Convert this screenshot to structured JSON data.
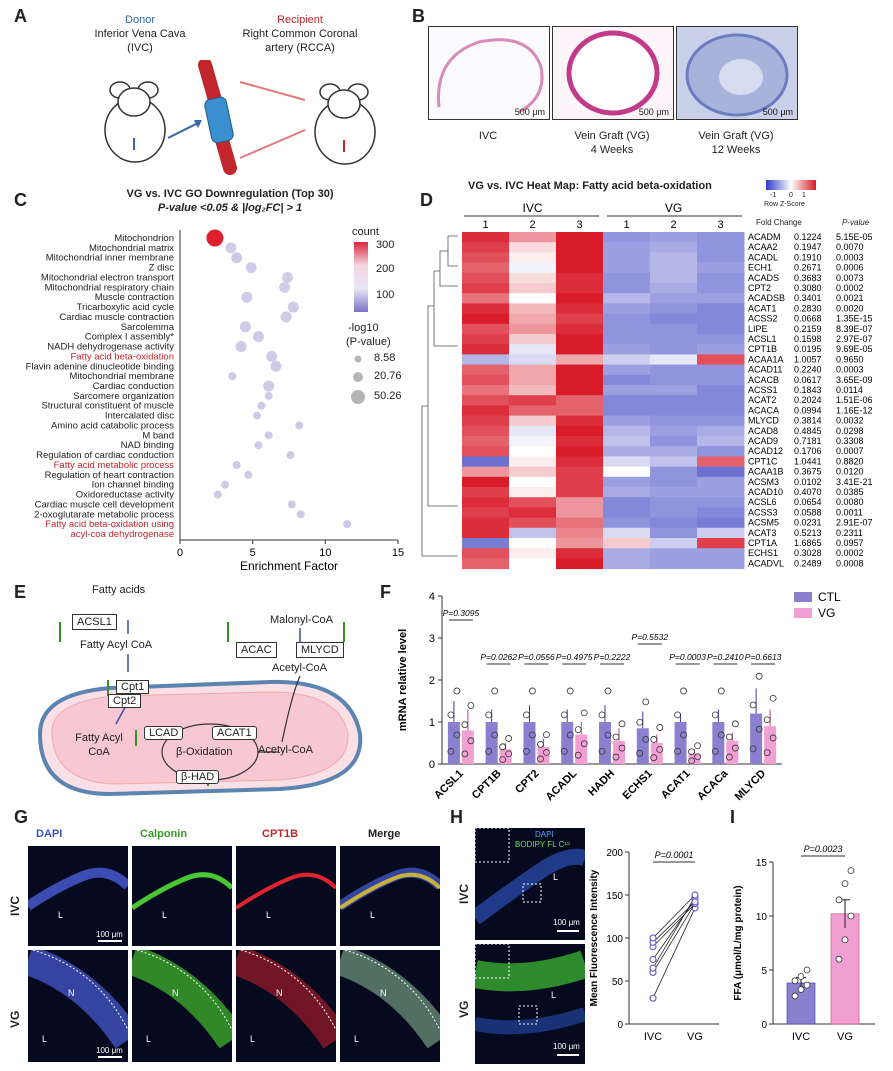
{
  "panel_labels": [
    "A",
    "B",
    "C",
    "D",
    "E",
    "F",
    "G",
    "H",
    "I"
  ],
  "panel_a": {
    "donor_title": "Donor",
    "donor_desc": "Inferior Vena Cava",
    "donor_abbr": "(IVC)",
    "recipient_title": "Recipient",
    "recipient_desc": "Right Common Coronal",
    "recipient_desc2": "artery (RCCA)"
  },
  "panel_b": {
    "images": [
      {
        "label": "IVC",
        "label2": "",
        "scale": "500 μm"
      },
      {
        "label": "Vein Graft (VG)",
        "label2": "4 Weeks",
        "scale": "500 μm"
      },
      {
        "label": "Vein Graft (VG)",
        "label2": "12 Weeks",
        "scale": "500 μm"
      }
    ]
  },
  "panel_c": {
    "title": "VG vs. IVC GO Downregulation (Top 30)",
    "subtitle": "P-value <0.05 & |log₂FC| > 1",
    "legend_count_title": "count",
    "legend_count_ticks": [
      "300",
      "200",
      "100"
    ],
    "legend_size_title": "-log10",
    "legend_size_title2": "(P-value)",
    "legend_size_values": [
      "8.58",
      "20.76",
      "50.26"
    ]
  },
  "panel_d": {
    "title": "VG vs. IVC Heat Map: Fatty acid beta-oxidation",
    "scale_ticks": [
      "-1",
      "0",
      "1"
    ],
    "scale_label": "Row Z-Score",
    "group_ivc": "IVC",
    "group_vg": "VG",
    "col_numbers": [
      "1",
      "2",
      "3",
      "1",
      "2",
      "3"
    ],
    "hdr_fc": "Fold Change",
    "hdr_p": "P-value",
    "genes": [
      {
        "name": "ACADM",
        "fc": "0.1224",
        "p": "5.15E-05",
        "z": [
          1.2,
          0.6,
          1.4,
          -0.9,
          -0.8,
          -0.9
        ]
      },
      {
        "name": "ACAA2",
        "fc": "0.1947",
        "p": "0.0070",
        "z": [
          1.1,
          0.2,
          1.3,
          -0.8,
          -0.7,
          -0.9
        ]
      },
      {
        "name": "ACADL",
        "fc": "0.1910",
        "p": "0.0003",
        "z": [
          1.0,
          0.1,
          1.3,
          -0.8,
          -0.6,
          -0.9
        ]
      },
      {
        "name": "ECH1",
        "fc": "0.2671",
        "p": "0.0006",
        "z": [
          0.9,
          -0.1,
          1.4,
          -0.8,
          -0.6,
          -0.8
        ]
      },
      {
        "name": "ACADS",
        "fc": "0.3683",
        "p": "0.0073",
        "z": [
          1.0,
          0.2,
          1.2,
          -0.9,
          -0.6,
          -0.9
        ]
      },
      {
        "name": "CPT2",
        "fc": "0.3080",
        "p": "0.0002",
        "z": [
          1.1,
          0.3,
          1.2,
          -0.9,
          -0.7,
          -0.9
        ]
      },
      {
        "name": "ACADSB",
        "fc": "0.3401",
        "p": "0.0021",
        "z": [
          0.8,
          0.0,
          1.4,
          -0.6,
          -0.8,
          -0.8
        ]
      },
      {
        "name": "ACAT1",
        "fc": "0.2830",
        "p": "0.0020",
        "z": [
          1.2,
          0.4,
          1.2,
          -0.8,
          -0.9,
          -1.0
        ]
      },
      {
        "name": "ACSS2",
        "fc": "0.0668",
        "p": "1.35E-15",
        "z": [
          1.3,
          0.5,
          1.1,
          -0.9,
          -1.0,
          -1.0
        ]
      },
      {
        "name": "LIPE",
        "fc": "0.2159",
        "p": "8.39E-07",
        "z": [
          1.0,
          0.6,
          1.2,
          -0.9,
          -0.9,
          -1.0
        ]
      },
      {
        "name": "ACSL1",
        "fc": "0.1598",
        "p": "2.97E-07",
        "z": [
          1.1,
          0.3,
          1.3,
          -0.9,
          -0.9,
          -0.9
        ]
      },
      {
        "name": "CPT1B",
        "fc": "0.0195",
        "p": "9.69E-05",
        "z": [
          1.2,
          -0.2,
          1.4,
          -0.8,
          -0.9,
          -0.8
        ]
      },
      {
        "name": "ACAA1A",
        "fc": "1.0057",
        "p": "0.9650",
        "z": [
          -0.6,
          -0.3,
          0.5,
          -0.4,
          -0.2,
          1.0
        ]
      },
      {
        "name": "ACAD11",
        "fc": "0.2240",
        "p": "0.0003",
        "z": [
          0.9,
          0.5,
          1.3,
          -0.8,
          -0.9,
          -0.9
        ]
      },
      {
        "name": "ACACB",
        "fc": "0.0617",
        "p": "3.65E-09",
        "z": [
          1.0,
          0.5,
          1.3,
          -1.0,
          -0.9,
          -0.9
        ]
      },
      {
        "name": "ACSS1",
        "fc": "0.1843",
        "p": "0.0114",
        "z": [
          0.8,
          0.4,
          1.4,
          -0.8,
          -0.8,
          -1.0
        ]
      },
      {
        "name": "ACAT2",
        "fc": "0.2024",
        "p": "1.51E-06",
        "z": [
          1.0,
          1.1,
          0.9,
          -1.0,
          -1.0,
          -1.0
        ]
      },
      {
        "name": "ACACA",
        "fc": "0.0994",
        "p": "1.16E-12",
        "z": [
          1.2,
          0.9,
          0.9,
          -1.0,
          -1.0,
          -1.0
        ]
      },
      {
        "name": "MLYCD",
        "fc": "0.3814",
        "p": "0.0032",
        "z": [
          1.1,
          0.3,
          1.2,
          -0.8,
          -0.9,
          -0.9
        ]
      },
      {
        "name": "ACAD8",
        "fc": "0.4845",
        "p": "0.0298",
        "z": [
          1.0,
          -0.2,
          1.3,
          -0.6,
          -0.8,
          -0.7
        ]
      },
      {
        "name": "ACAD9",
        "fc": "0.7181",
        "p": "0.3308",
        "z": [
          0.9,
          -0.1,
          1.2,
          -0.5,
          -0.9,
          -0.6
        ]
      },
      {
        "name": "ACAD12",
        "fc": "0.1706",
        "p": "0.0007",
        "z": [
          1.0,
          0.0,
          1.3,
          -0.7,
          -0.7,
          -0.9
        ]
      },
      {
        "name": "CPT1C",
        "fc": "1.0441",
        "p": "0.8820",
        "z": [
          -1.2,
          0.1,
          1.2,
          -0.3,
          -0.5,
          0.9
        ]
      },
      {
        "name": "ACAA1B",
        "fc": "0.3675",
        "p": "0.0120",
        "z": [
          0.6,
          0.3,
          1.1,
          0.0,
          -0.9,
          -1.2
        ]
      },
      {
        "name": "ACSM3",
        "fc": "0.0102",
        "p": "3.41E-21",
        "z": [
          1.3,
          0.0,
          1.1,
          -0.8,
          -0.9,
          -0.8
        ]
      },
      {
        "name": "ACAD10",
        "fc": "0.4070",
        "p": "0.0385",
        "z": [
          1.1,
          0.1,
          1.1,
          -0.7,
          -0.8,
          -0.8
        ]
      },
      {
        "name": "ACSL6",
        "fc": "0.0654",
        "p": "0.0080",
        "z": [
          1.2,
          1.0,
          0.6,
          -1.0,
          -0.9,
          -0.9
        ]
      },
      {
        "name": "ACSS3",
        "fc": "0.0588",
        "p": "0.0011",
        "z": [
          1.1,
          1.2,
          0.6,
          -1.0,
          -0.9,
          -1.0
        ]
      },
      {
        "name": "ACSM5",
        "fc": "0.0231",
        "p": "2.91E-07",
        "z": [
          1.2,
          1.0,
          0.8,
          -0.9,
          -1.0,
          -1.1
        ]
      },
      {
        "name": "ACAT3",
        "fc": "0.5213",
        "p": "0.2311",
        "z": [
          1.2,
          -0.5,
          0.7,
          -0.3,
          -0.9,
          -0.4
        ]
      },
      {
        "name": "CPT1A",
        "fc": "1.6865",
        "p": "0.0957",
        "z": [
          -1.1,
          0.0,
          0.6,
          0.3,
          -0.4,
          1.1
        ]
      },
      {
        "name": "ECHS1",
        "fc": "0.3028",
        "p": "0.0002",
        "z": [
          1.0,
          0.1,
          1.2,
          -0.7,
          -0.8,
          -0.8
        ]
      },
      {
        "name": "ACADVL",
        "fc": "0.2489",
        "p": "0.0008",
        "z": [
          0.9,
          0.0,
          1.3,
          -0.7,
          -0.8,
          -0.8
        ]
      }
    ]
  },
  "panel_e": {
    "fatty_acids": "Fatty acids",
    "acsl1": "ACSL1",
    "fatty_acyl_coa": "Fatty Acyl CoA",
    "cpt1": "Cpt1",
    "cpt2": "Cpt2",
    "fatty_acyl_coa_inner": "Fatty Acyl",
    "fatty_acyl_coa_inner2": "CoA",
    "lcad": "LCAD",
    "acat1": "ACAT1",
    "beta_ox": "β-Oxidation",
    "beta_had": "β-HAD",
    "acetyl_coa_inner": "Acetyl-CoA",
    "malonyl": "Malonyl-CoA",
    "acac": "ACAC",
    "mlycd": "MLYCD",
    "acetyl_coa": "Acetyl-CoA"
  },
  "panel_g": {
    "col_labels": [
      "DAPI",
      "Calponin",
      "CPT1B",
      "Merge"
    ],
    "row_labels": [
      "IVC",
      "VG"
    ],
    "scale": "100 μm",
    "region_l": "L",
    "region_n": "N"
  },
  "panel_h": {
    "legend_dapi": "DAPI",
    "legend_bodipy": "BODIPY FL C¹⁶",
    "row_labels": [
      "IVC",
      "VG"
    ],
    "scale": "100 μm",
    "region_l": "L"
  },
  "chart_data": [
    {
      "type": "scatter",
      "panel": "C",
      "xlabel": "Enrichment Factor",
      "xlim": [
        0,
        15
      ],
      "x_ticks": [
        "0",
        "5",
        "10",
        "15"
      ],
      "categories": [
        "Mitochondrion",
        "Mitochondrial matrix",
        "Mitochondrial inner membrane",
        "Z disc",
        "Mitochondrial electron transport",
        "Mitochondrial respiratory chain",
        "Muscle contraction",
        "Tricarboxylic acid cycle",
        "Cardiac muscle contraction",
        "Sarcolemma",
        "Complex I assembly*",
        "NADH dehydrogenase activity",
        "Fatty acid beta-oxidation",
        "Flavin adenine dinucleotide binding",
        "Mitochondrial membrane",
        "Cardiac conduction",
        "Sarcomere organization",
        "Structural constituent of muscle",
        "Intercalated disc",
        "Amino acid catabolic process",
        "M band",
        "NAD binding",
        "Regulation of cardiac conduction",
        "Fatty acid metabolic process",
        "Regulation of heart contraction",
        "Ion channel binding",
        "Oxidoreductase activity",
        "Cardiac muscle cell development",
        "2-oxoglutarate metabolic process",
        "Fatty acid beta-oxidation using",
        "acyl-coa dehydrogenase"
      ],
      "highlighted": [
        "Fatty acid beta-oxidation",
        "Fatty acid metabolic process",
        "Fatty acid beta-oxidation using",
        "acyl-coa dehydrogenase"
      ],
      "points": [
        {
          "x": 2.4,
          "count": 330,
          "size": 50.26
        },
        {
          "x": 3.5,
          "count": 120,
          "size": 20.76
        },
        {
          "x": 3.9,
          "count": 80,
          "size": 20.76
        },
        {
          "x": 4.9,
          "count": 100,
          "size": 20.76
        },
        {
          "x": 7.4,
          "count": 110,
          "size": 20.76
        },
        {
          "x": 7.2,
          "count": 100,
          "size": 20.76
        },
        {
          "x": 4.6,
          "count": 100,
          "size": 20.76
        },
        {
          "x": 7.8,
          "count": 90,
          "size": 20.76
        },
        {
          "x": 7.3,
          "count": 90,
          "size": 20.76
        },
        {
          "x": 4.5,
          "count": 100,
          "size": 20.76
        },
        {
          "x": 5.4,
          "count": 80,
          "size": 20.76
        },
        {
          "x": 4.2,
          "count": 90,
          "size": 20.76
        },
        {
          "x": 6.3,
          "count": 100,
          "size": 20.76
        },
        {
          "x": 6.6,
          "count": 90,
          "size": 20.76
        },
        {
          "x": 3.6,
          "count": 80,
          "size": 8.58
        },
        {
          "x": 6.1,
          "count": 90,
          "size": 20.76
        },
        {
          "x": 6.1,
          "count": 80,
          "size": 8.58
        },
        {
          "x": 5.6,
          "count": 80,
          "size": 8.58
        },
        {
          "x": 5.3,
          "count": 80,
          "size": 8.58
        },
        {
          "x": 8.2,
          "count": 80,
          "size": 8.58
        },
        {
          "x": 6.1,
          "count": 80,
          "size": 8.58
        },
        {
          "x": 5.4,
          "count": 80,
          "size": 8.58
        },
        {
          "x": 7.6,
          "count": 80,
          "size": 8.58
        },
        {
          "x": 3.9,
          "count": 80,
          "size": 8.58
        },
        {
          "x": 4.7,
          "count": 80,
          "size": 8.58
        },
        {
          "x": 3.1,
          "count": 80,
          "size": 8.58
        },
        {
          "x": 2.6,
          "count": 80,
          "size": 8.58
        },
        {
          "x": 7.7,
          "count": 80,
          "size": 8.58
        },
        {
          "x": 8.3,
          "count": 80,
          "size": 8.58
        },
        {
          "x": 11.5,
          "count": 80,
          "size": 8.58
        }
      ]
    },
    {
      "type": "bar",
      "panel": "F",
      "ylabel": "mRNA relative level",
      "ylim": [
        0,
        4
      ],
      "y_ticks": [
        "0",
        "1",
        "2",
        "3",
        "4"
      ],
      "categories": [
        "ACSL1",
        "CPT1B",
        "CPT2",
        "ACADL",
        "HADH",
        "ECHS1",
        "ACAT1",
        "ACACa",
        "MLYCD"
      ],
      "series": [
        {
          "name": "CTL",
          "color": "#8a80cf",
          "values": [
            1.0,
            1.0,
            1.0,
            1.0,
            1.0,
            0.85,
            1.0,
            1.0,
            1.2
          ],
          "err": [
            0.5,
            0.3,
            0.4,
            0.3,
            0.4,
            0.4,
            0.2,
            0.3,
            0.6
          ]
        },
        {
          "name": "VG",
          "color": "#f2a0d4",
          "values": [
            0.8,
            0.35,
            0.4,
            0.7,
            0.55,
            0.5,
            0.25,
            0.55,
            0.9
          ],
          "err": [
            0.5,
            0.15,
            0.2,
            0.3,
            0.3,
            0.2,
            0.1,
            0.2,
            0.4
          ]
        }
      ],
      "p_values": [
        "P=0.3095",
        "P=0.0262",
        "P=0.0556",
        "P=0.4975",
        "P=0.2222",
        "P=0.5532",
        "P=0.0003",
        "P=0.2410",
        "P=0.6613"
      ]
    },
    {
      "type": "line",
      "panel": "H",
      "ylabel": "Mean Fluorescence Intensity",
      "ylim": [
        0,
        200
      ],
      "y_ticks": [
        "0",
        "50",
        "100",
        "150",
        "200"
      ],
      "categories": [
        "IVC",
        "VG"
      ],
      "p_value": "P=0.0001",
      "pairs": [
        [
          30,
          135
        ],
        [
          60,
          140
        ],
        [
          65,
          148
        ],
        [
          75,
          145
        ],
        [
          90,
          140
        ],
        [
          95,
          142
        ],
        [
          100,
          150
        ]
      ]
    },
    {
      "type": "bar",
      "panel": "I",
      "ylabel": "FFA (μmol/L/mg protein)",
      "ylim": [
        0,
        15
      ],
      "y_ticks": [
        "0",
        "5",
        "10",
        "15"
      ],
      "categories": [
        "IVC",
        "VG"
      ],
      "values": [
        3.8,
        10.2
      ],
      "err": [
        0.5,
        1.3
      ],
      "colors": [
        "#8a80cf",
        "#f2a0d4"
      ],
      "p_value": "P=0.0023",
      "points": [
        [
          2.6,
          3.2,
          3.6,
          4.0,
          4.4,
          5.0
        ],
        [
          6.0,
          7.8,
          10.0,
          11.5,
          13.0,
          14.2
        ]
      ]
    }
  ]
}
